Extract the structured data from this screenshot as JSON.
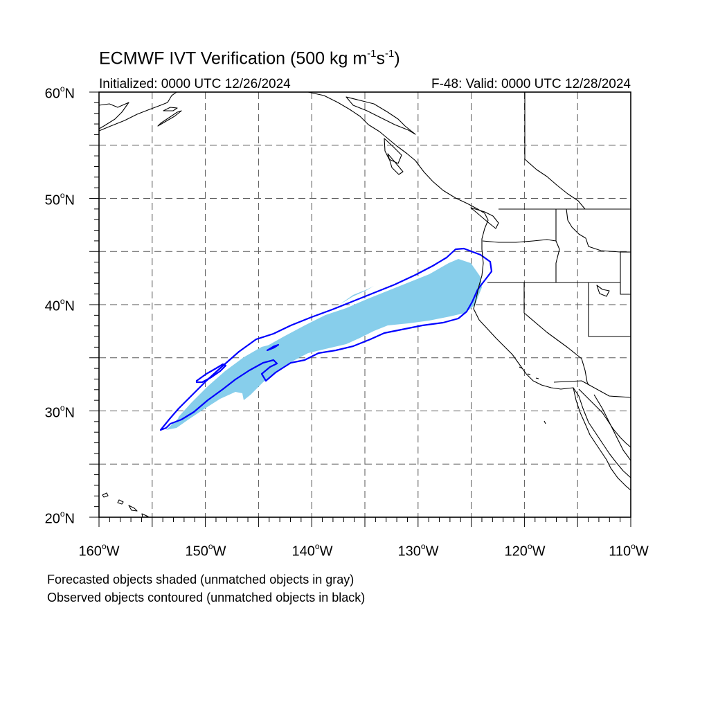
{
  "title": {
    "main_prefix": "ECMWF IVT Verification (500 kg m",
    "exp1": "-1",
    "mid": "s",
    "exp2": "-1",
    "suffix": ")"
  },
  "initialized": "Initialized: 0000 UTC 12/26/2024",
  "valid": "F-48: Valid: 0000 UTC 12/28/2024",
  "lat_labels": [
    {
      "num": "60",
      "suffix": "N"
    },
    {
      "num": "50",
      "suffix": "N"
    },
    {
      "num": "40",
      "suffix": "N"
    },
    {
      "num": "30",
      "suffix": "N"
    },
    {
      "num": "20",
      "suffix": "N"
    }
  ],
  "lon_labels": [
    {
      "num": "160",
      "suffix": "W"
    },
    {
      "num": "150",
      "suffix": "W"
    },
    {
      "num": "140",
      "suffix": "W"
    },
    {
      "num": "130",
      "suffix": "W"
    },
    {
      "num": "120",
      "suffix": "W"
    },
    {
      "num": "110",
      "suffix": "W"
    }
  ],
  "degree_symbol": "o",
  "notes": {
    "line1": "Forecasted objects shaded (unmatched objects in gray)",
    "line2": "Observed objects contoured (unmatched objects in black)"
  },
  "map_data": {
    "lon_range": [
      -160,
      -110
    ],
    "lat_range": [
      20,
      60
    ],
    "grid_lons": [
      -155,
      -150,
      -145,
      -140,
      -135,
      -130,
      -125,
      -120,
      -115
    ],
    "grid_lats": [
      25,
      30,
      35,
      40,
      45,
      50,
      55
    ],
    "colors": {
      "forecast_fill": "#87ceeb",
      "observed_contour": "#0000ff",
      "coastline": "#000000",
      "grid": "#555555"
    }
  }
}
